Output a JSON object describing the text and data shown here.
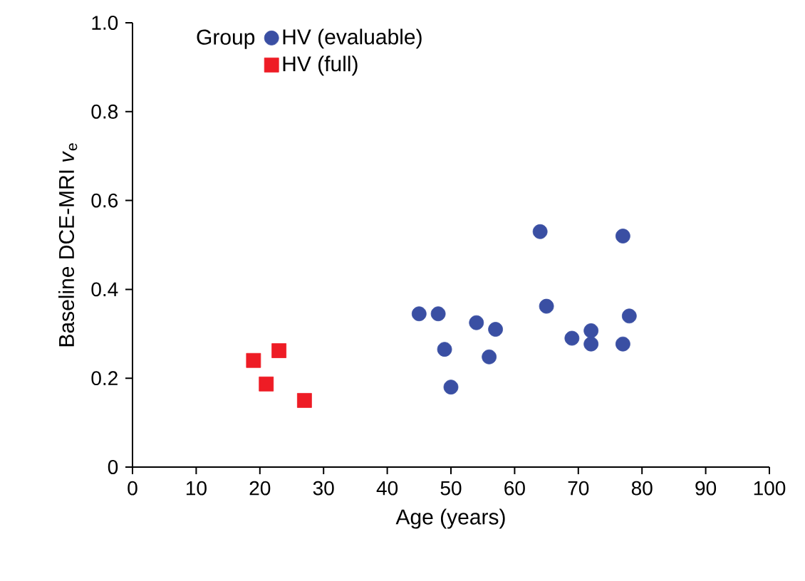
{
  "chart_data": {
    "type": "scatter",
    "xlabel": "Age (years)",
    "ylabel": "Baseline DCE-MRI *v*$_{e}$",
    "legend_title": "Group",
    "legend": "top left",
    "grid": false,
    "xlim": [
      0,
      100
    ],
    "xticks": [
      0,
      10,
      20,
      30,
      40,
      50,
      60,
      70,
      80,
      90,
      100
    ],
    "ylim": [
      0,
      1.0
    ],
    "yticks": [
      0,
      0.2,
      0.4,
      0.6,
      0.8,
      {
        "value": 1.0,
        "label": "1.0"
      }
    ],
    "series": [
      {
        "name": "HV (evaluable)",
        "color": "#3a4fa3",
        "marker": "circle",
        "x": [
          45,
          48,
          49,
          50,
          54,
          56,
          57,
          64,
          65,
          69,
          72,
          72,
          77,
          77,
          78
        ],
        "values": [
          0.345,
          0.345,
          0.265,
          0.18,
          0.325,
          0.248,
          0.31,
          0.53,
          0.362,
          0.29,
          0.307,
          0.277,
          0.52,
          0.277,
          0.34
        ]
      },
      {
        "name": "HV (full)",
        "color": "#ee1c25",
        "marker": "square",
        "x": [
          19,
          21,
          23,
          27
        ],
        "values": [
          0.24,
          0.187,
          0.262,
          0.15
        ]
      }
    ]
  }
}
